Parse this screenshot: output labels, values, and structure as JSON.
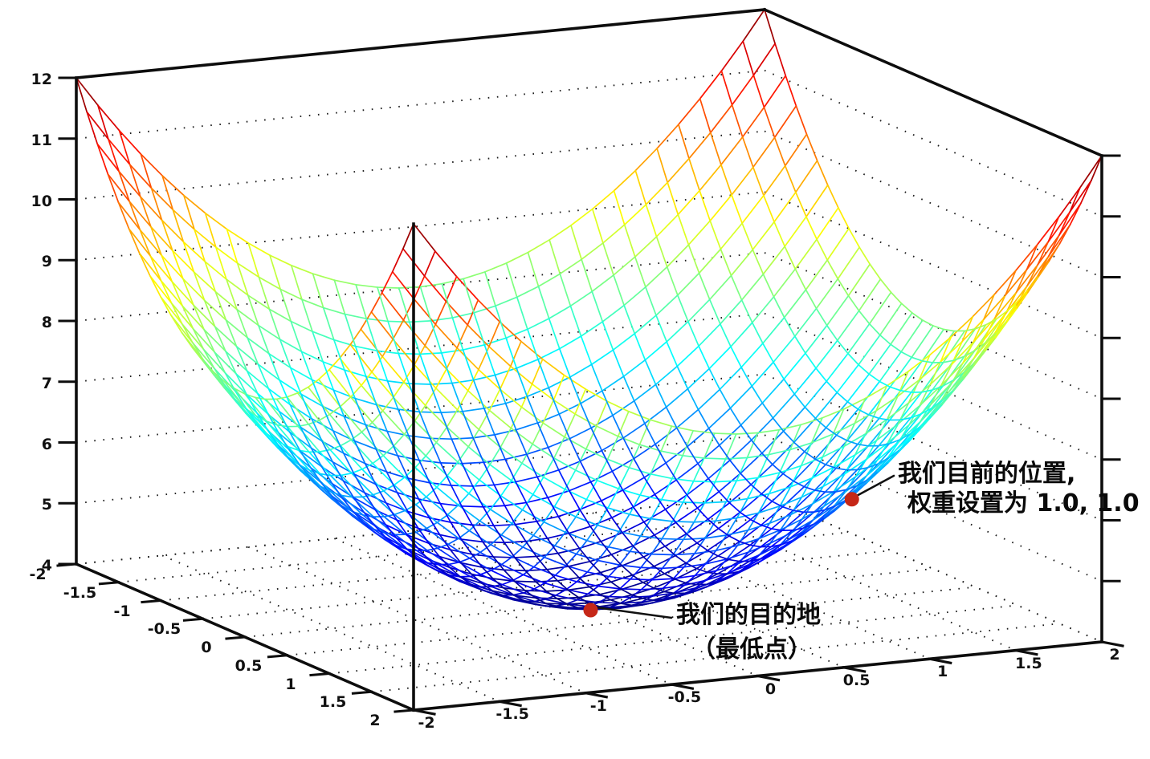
{
  "chart_data": {
    "type": "surface3d",
    "surface": {
      "formula": "z = x^2 + y^2 + 4",
      "x_range": [
        -2,
        2
      ],
      "y_range": [
        -2,
        2
      ],
      "z_range": [
        4,
        12
      ],
      "mesh_divisions": 32,
      "colormap": "jet"
    },
    "axes": {
      "x_tick_values": [
        -2,
        -1.5,
        -1,
        -0.5,
        0,
        0.5,
        1,
        1.5,
        2
      ],
      "x_tick_labels": [
        "-2",
        "-1.5",
        "-1",
        "-0.5",
        "0",
        "0.5",
        "1",
        "1.5",
        "2"
      ],
      "y_tick_values": [
        -2,
        -1.5,
        -1,
        -0.5,
        0,
        0.5,
        1,
        1.5,
        2
      ],
      "y_tick_labels": [
        "-2",
        "-1.5",
        "-1",
        "-0.5",
        "0",
        "0.5",
        "1",
        "1.5",
        "2"
      ],
      "z_tick_values": [
        4,
        5,
        6,
        7,
        8,
        9,
        10,
        11,
        12
      ],
      "z_tick_labels": [
        "4",
        "5",
        "6",
        "7",
        "8",
        "9",
        "10",
        "11",
        "12"
      ],
      "floor_grid_step": 0.5,
      "wall_grid_step": 1,
      "grid_style": "dotted"
    },
    "annotations": [
      {
        "id": "current-position",
        "point": [
          1,
          1,
          6
        ],
        "lines": [
          "我们目前的位置,",
          "权重设置为 1.0, 1.0"
        ]
      },
      {
        "id": "destination",
        "point": [
          0,
          0,
          4
        ],
        "lines": [
          "我们的目的地",
          "（最低点）"
        ]
      }
    ],
    "colors": {
      "background": "#ffffff",
      "axis": "#0d0d0d",
      "grid_dots": "#1c1c1c",
      "marker": "#c52718",
      "leader_line": "#111111",
      "annotation_text": "#0a0a0a"
    },
    "legend": null,
    "title": ""
  }
}
